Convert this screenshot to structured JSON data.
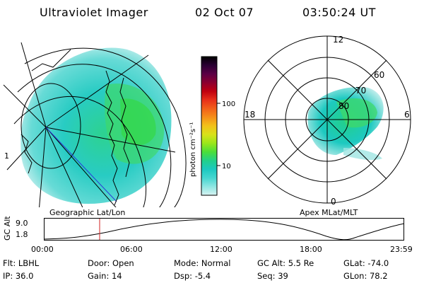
{
  "header": {
    "instrument": "Ultraviolet Imager",
    "date": "02 Oct 07",
    "time": "03:50:24 UT"
  },
  "left_panel": {
    "caption": "Geographic Lat/Lon",
    "edge_mark": "1"
  },
  "colorbar": {
    "unit_label": "photon cm⁻²s⁻¹",
    "ticks": [
      "100",
      "10"
    ],
    "colors": [
      "#000000",
      "#2a0033",
      "#5b0045",
      "#8c0030",
      "#c00010",
      "#e8301a",
      "#f2601a",
      "#f5901a",
      "#f2c21a",
      "#d8e21a",
      "#9ae61a",
      "#4ade3a",
      "#22d08a",
      "#1dc9c0",
      "#45d6d0",
      "#8fe6e2",
      "#d8f3f2"
    ]
  },
  "right_panel": {
    "caption": "Apex MLat/MLT",
    "mlt_labels": {
      "top": "12",
      "left": "18",
      "right": "6",
      "bottom": "0"
    },
    "lat_labels": [
      "60",
      "70",
      "80"
    ]
  },
  "altitude_plot": {
    "ylabel": "GC Alt",
    "yticks": [
      "9.0",
      "1.8"
    ],
    "xticks": [
      "00:00",
      "06:00",
      "12:00",
      "18:00",
      "23:59"
    ]
  },
  "info": {
    "rows": [
      [
        {
          "label": "Flt:",
          "value": "LBHL"
        },
        {
          "label": "Door:",
          "value": "Open"
        },
        {
          "label": "Mode:",
          "value": "Normal"
        },
        {
          "label": "GC Alt:",
          "value": "5.5 Re"
        },
        {
          "label": "GLat:",
          "value": "-74.0"
        }
      ],
      [
        {
          "label": "IP:",
          "value": "36.0"
        },
        {
          "label": "Gain:",
          "value": "14"
        },
        {
          "label": "Dsp:",
          "value": "-5.4"
        },
        {
          "label": "Seq:",
          "value": "39"
        },
        {
          "label": "GLon:",
          "value": "78.2"
        }
      ]
    ]
  }
}
